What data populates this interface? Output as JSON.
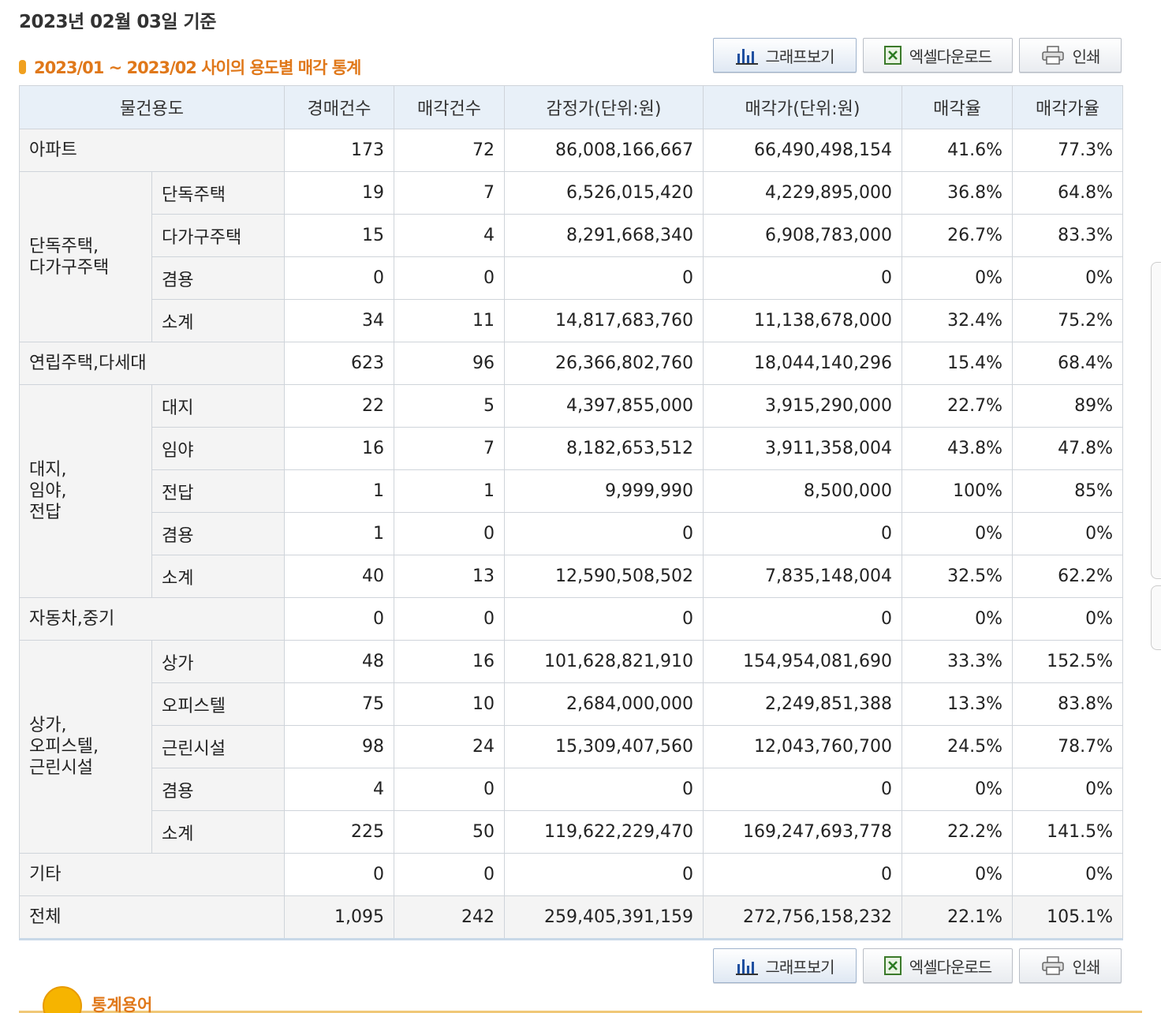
{
  "date_label": "2023년 02월 03일 기준",
  "section_title": "2023/01 ~ 2023/02 사이의 용도별 매각 통계",
  "buttons": {
    "graph": "그래프보기",
    "excel": "엑셀다운로드",
    "print": "인쇄"
  },
  "icons": {
    "graph": "bar-chart-icon",
    "excel": "excel-icon",
    "print": "printer-icon"
  },
  "colors": {
    "title_orange": "#e0781a",
    "header_bg": "#e8f0f8",
    "group_bg": "#f4f4f4"
  },
  "table": {
    "headers": [
      "물건용도",
      "경매건수",
      "매각건수",
      "감정가(단위:원)",
      "매각가(단위:원)",
      "매각율",
      "매각가율"
    ],
    "rows": {
      "apt": [
        "아파트",
        "173",
        "72",
        "86,008,166,667",
        "66,490,498,154",
        "41.6%",
        "77.3%"
      ],
      "house_group": "단독주택,\n다가구주택",
      "house_1": [
        "단독주택",
        "19",
        "7",
        "6,526,015,420",
        "4,229,895,000",
        "36.8%",
        "64.8%"
      ],
      "house_2": [
        "다가구주택",
        "15",
        "4",
        "8,291,668,340",
        "6,908,783,000",
        "26.7%",
        "83.3%"
      ],
      "house_3": [
        "겸용",
        "0",
        "0",
        "0",
        "0",
        "0%",
        "0%"
      ],
      "house_4": [
        "소계",
        "34",
        "11",
        "14,817,683,760",
        "11,138,678,000",
        "32.4%",
        "75.2%"
      ],
      "villa": [
        "연립주택,다세대",
        "623",
        "96",
        "26,366,802,760",
        "18,044,140,296",
        "15.4%",
        "68.4%"
      ],
      "land_group": "대지,\n임야,\n전답",
      "land_1": [
        "대지",
        "22",
        "5",
        "4,397,855,000",
        "3,915,290,000",
        "22.7%",
        "89%"
      ],
      "land_2": [
        "임야",
        "16",
        "7",
        "8,182,653,512",
        "3,911,358,004",
        "43.8%",
        "47.8%"
      ],
      "land_3": [
        "전답",
        "1",
        "1",
        "9,999,990",
        "8,500,000",
        "100%",
        "85%"
      ],
      "land_4": [
        "겸용",
        "1",
        "0",
        "0",
        "0",
        "0%",
        "0%"
      ],
      "land_5": [
        "소계",
        "40",
        "13",
        "12,590,508,502",
        "7,835,148,004",
        "32.5%",
        "62.2%"
      ],
      "car": [
        "자동차,중기",
        "0",
        "0",
        "0",
        "0",
        "0%",
        "0%"
      ],
      "comm_group": "상가,\n오피스텔,\n근린시설",
      "comm_1": [
        "상가",
        "48",
        "16",
        "101,628,821,910",
        "154,954,081,690",
        "33.3%",
        "152.5%"
      ],
      "comm_2": [
        "오피스텔",
        "75",
        "10",
        "2,684,000,000",
        "2,249,851,388",
        "13.3%",
        "83.8%"
      ],
      "comm_3": [
        "근린시설",
        "98",
        "24",
        "15,309,407,560",
        "12,043,760,700",
        "24.5%",
        "78.7%"
      ],
      "comm_4": [
        "겸용",
        "4",
        "0",
        "0",
        "0",
        "0%",
        "0%"
      ],
      "comm_5": [
        "소계",
        "225",
        "50",
        "119,622,229,470",
        "169,247,693,778",
        "22.2%",
        "141.5%"
      ],
      "etc": [
        "기타",
        "0",
        "0",
        "0",
        "0",
        "0%",
        "0%"
      ],
      "total": [
        "전체",
        "1,095",
        "242",
        "259,405,391,159",
        "272,756,158,232",
        "22.1%",
        "105.1%"
      ]
    }
  },
  "footer_label": "통계용어"
}
